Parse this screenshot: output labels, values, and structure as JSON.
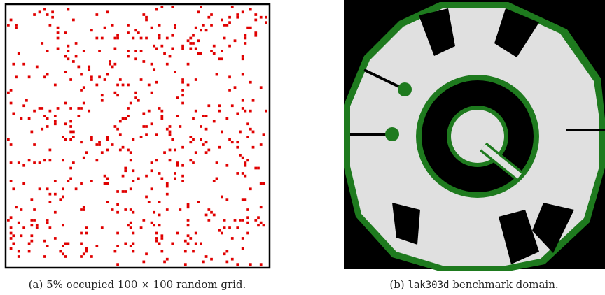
{
  "figures": [
    {
      "caption": "(a) 5% occupied 100 × 100 random grid."
    },
    {
      "caption_label": "(b)",
      "caption_code": "lak303d",
      "caption_text": "benchmark domain."
    }
  ]
}
